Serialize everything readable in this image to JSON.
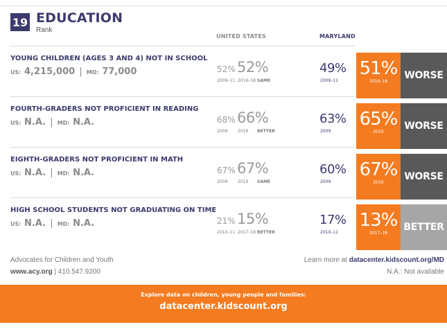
{
  "header": {
    "rank": "19",
    "title": "EDUCATION",
    "subtitle": "Rank",
    "col_us": "UNITED STATES",
    "col_md": "MARYLAND"
  },
  "indicators": [
    {
      "name": "YOUNG CHILDREN (AGES 3 AND 4) NOT IN SCHOOL",
      "us_prefix": "US:",
      "us_count": "4,215,000",
      "md_prefix": "MD:",
      "md_count": "77,000",
      "us_prior": "52%",
      "us_prior_year": "2009–11",
      "us_current": "52%",
      "us_current_year": "2016–18",
      "us_trend": "SAME",
      "md_prior": "49%",
      "md_prior_year": "2009–11",
      "md_current": "51%",
      "md_current_year": "2016–18",
      "status": "WORSE",
      "status_color": "#595959"
    },
    {
      "name": "FOURTH-GRADERS NOT PROFICIENT IN READING",
      "us_prefix": "US:",
      "us_count": "N.A.",
      "md_prefix": "MD:",
      "md_count": "N.A.",
      "us_prior": "68%",
      "us_prior_year": "2009",
      "us_current": "66%",
      "us_current_year": "2019",
      "us_trend": "BETTER",
      "md_prior": "63%",
      "md_prior_year": "2009",
      "md_current": "65%",
      "md_current_year": "2019",
      "status": "WORSE",
      "status_color": "#595959"
    },
    {
      "name": "EIGHTH-GRADERS NOT PROFICIENT IN MATH",
      "us_prefix": "US:",
      "us_count": "N.A.",
      "md_prefix": "MD:",
      "md_count": "N.A.",
      "us_prior": "67%",
      "us_prior_year": "2009",
      "us_current": "67%",
      "us_current_year": "2019",
      "us_trend": "SAME",
      "md_prior": "60%",
      "md_prior_year": "2009",
      "md_current": "67%",
      "md_current_year": "2019",
      "status": "WORSE",
      "status_color": "#595959"
    },
    {
      "name": "HIGH SCHOOL STUDENTS NOT GRADUATING ON TIME",
      "us_prefix": "US:",
      "us_count": "N.A.",
      "md_prefix": "MD:",
      "md_count": "N.A.",
      "us_prior": "21%",
      "us_prior_year": "2010–11",
      "us_current": "15%",
      "us_current_year": "2017–18",
      "us_trend": "BETTER",
      "md_prior": "17%",
      "md_prior_year": "2010–11",
      "md_current": "13%",
      "md_current_year": "2017–18",
      "status": "BETTER",
      "status_color": "#a6a6a6"
    }
  ],
  "footer": {
    "org": "Advocates for Children and Youth",
    "site": "www.acy.org",
    "phone": "410.547.9200",
    "learn_prefix": "Learn more at",
    "learn_url": "datacenter.kidscount.org/MD",
    "na_note": "N.A.: Not available"
  },
  "banner": {
    "line1": "Explore data on children, young people and families:",
    "line2": "datacenter.kidscount.org"
  },
  "colors": {
    "orange": "#f47b20",
    "navy": "#3b3b6e",
    "worse": "#595959",
    "better": "#a6a6a6"
  }
}
